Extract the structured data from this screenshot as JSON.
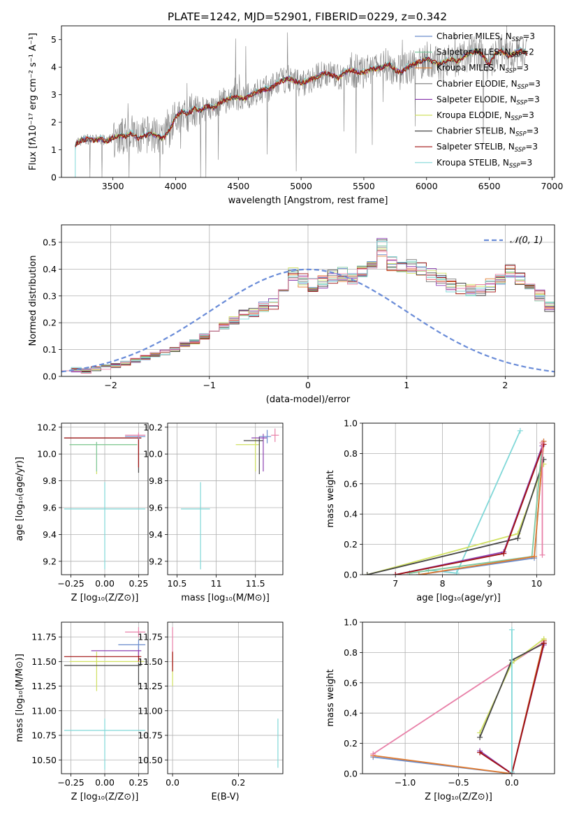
{
  "figure": {
    "title": "PLATE=1242, MJD=52901, FIBERID=0229, z=0.342"
  },
  "palette": {
    "Chabrier MILES": "#6a8ccc",
    "Salpeter MILES": "#7ec8a0",
    "Kroupa MILES": "#e07a2e",
    "Chabrier ELODIE": "#7a7a7a",
    "Salpeter ELODIE": "#8c3fb0",
    "Kroupa ELODIE": "#d0e060",
    "Chabrier STELIB": "#444444",
    "Salpeter STELIB": "#a01010",
    "Kroupa STELIB": "#80d8d8",
    "extra_pink": "#e880a8",
    "normal_curve": "#6a8cd8",
    "data_spectrum": "#808080"
  },
  "chart_data": [
    {
      "id": "spectrum",
      "type": "line",
      "title": "PLATE=1242, MJD=52901, FIBERID=0229, z=0.342",
      "xlabel": "wavelength [Angstrom, rest frame]",
      "ylabel": "Flux [fλ10⁻¹⁷ erg cm⁻² s⁻¹ A⁻¹]",
      "xlim": [
        3090,
        7020
      ],
      "ylim": [
        0,
        5.5
      ],
      "xticks": [
        3500,
        4000,
        4500,
        5000,
        5500,
        6000,
        6500,
        7000
      ],
      "yticks": [
        0,
        1,
        2,
        3,
        4,
        5
      ],
      "grid": false,
      "legend_position": "top-right",
      "data_range": [
        3200,
        6800
      ],
      "model_curve": {
        "x": [
          3200,
          3250,
          3300,
          3350,
          3400,
          3450,
          3500,
          3550,
          3600,
          3650,
          3700,
          3750,
          3800,
          3850,
          3900,
          3950,
          4000,
          4050,
          4100,
          4150,
          4200,
          4250,
          4300,
          4350,
          4400,
          4450,
          4500,
          4550,
          4600,
          4650,
          4700,
          4750,
          4800,
          4850,
          4900,
          4950,
          5000,
          5050,
          5100,
          5150,
          5200,
          5250,
          5300,
          5350,
          5400,
          5450,
          5500,
          5550,
          5600,
          5650,
          5700,
          5750,
          5800,
          5850,
          5900,
          5950,
          6000,
          6050,
          6100,
          6150,
          6200,
          6250,
          6300,
          6350,
          6400,
          6450,
          6500,
          6550,
          6600,
          6650,
          6700,
          6750,
          6800
        ],
        "y": [
          1.2,
          1.35,
          1.4,
          1.35,
          1.4,
          1.3,
          1.45,
          1.5,
          1.5,
          1.6,
          1.4,
          1.5,
          1.6,
          1.5,
          1.4,
          1.7,
          2.2,
          2.4,
          2.3,
          2.5,
          2.4,
          2.6,
          2.5,
          2.7,
          2.8,
          2.9,
          2.9,
          2.85,
          3.0,
          3.1,
          3.2,
          3.2,
          3.4,
          3.5,
          3.6,
          3.5,
          3.4,
          3.5,
          3.6,
          3.7,
          3.8,
          3.7,
          3.6,
          3.8,
          3.9,
          3.8,
          3.8,
          3.9,
          3.95,
          4.0,
          4.1,
          3.9,
          3.8,
          4.0,
          4.1,
          4.2,
          4.3,
          4.2,
          4.1,
          4.2,
          4.3,
          4.2,
          4.4,
          4.5,
          4.6,
          4.4,
          4.1,
          4.5,
          4.6,
          4.4,
          4.5,
          4.6,
          4.5
        ]
      },
      "series": [
        {
          "name": "Chabrier MILES, N_SSP=3",
          "legend_main": "Chabrier MILES, N",
          "legend_sub": "SSP",
          "legend_tail": "=3"
        },
        {
          "name": "Salpeter MILES, N_SSP=2",
          "legend_main": "Salpeter MILES, N",
          "legend_sub": "SSP",
          "legend_tail": "=2"
        },
        {
          "name": "Kroupa MILES, N_SSP=3",
          "legend_main": "Kroupa MILES, N",
          "legend_sub": "SSP",
          "legend_tail": "=3"
        },
        {
          "name": "Chabrier ELODIE, N_SSP=3",
          "legend_main": "Chabrier ELODIE, N",
          "legend_sub": "SSP",
          "legend_tail": "=3"
        },
        {
          "name": "Salpeter ELODIE, N_SSP=3",
          "legend_main": "Salpeter ELODIE, N",
          "legend_sub": "SSP",
          "legend_tail": "=3"
        },
        {
          "name": "Kroupa ELODIE, N_SSP=3",
          "legend_main": "Kroupa ELODIE, N",
          "legend_sub": "SSP",
          "legend_tail": "=3"
        },
        {
          "name": "Chabrier STELIB, N_SSP=3",
          "legend_main": "Chabrier STELIB, N",
          "legend_sub": "SSP",
          "legend_tail": "=3"
        },
        {
          "name": "Salpeter STELIB, N_SSP=3",
          "legend_main": "Salpeter STELIB, N",
          "legend_sub": "SSP",
          "legend_tail": "=3"
        },
        {
          "name": "Kroupa STELIB, N_SSP=3",
          "legend_main": "Kroupa STELIB, N",
          "legend_sub": "SSP",
          "legend_tail": "=3"
        }
      ]
    },
    {
      "id": "residuals",
      "type": "line",
      "xlabel": "(data-model)/error",
      "ylabel": "Normed distribution",
      "xlim": [
        -2.5,
        2.5
      ],
      "ylim": [
        0,
        0.565
      ],
      "xticks": [
        -2,
        -1,
        0,
        1,
        2
      ],
      "yticks": [
        0.0,
        0.1,
        0.2,
        0.3,
        0.4,
        0.5
      ],
      "grid": true,
      "legend_position": "top-right",
      "normal_label": "𝒩(0, 1)",
      "bin_edges_start": -2.5,
      "bin_width": 0.1,
      "base_hist": [
        0.03,
        0.025,
        0.02,
        0.03,
        0.035,
        0.04,
        0.05,
        0.06,
        0.07,
        0.08,
        0.09,
        0.1,
        0.12,
        0.13,
        0.15,
        0.17,
        0.19,
        0.21,
        0.23,
        0.24,
        0.26,
        0.27,
        0.33,
        0.38,
        0.36,
        0.34,
        0.35,
        0.37,
        0.38,
        0.37,
        0.4,
        0.42,
        0.48,
        0.42,
        0.4,
        0.41,
        0.4,
        0.38,
        0.36,
        0.34,
        0.33,
        0.32,
        0.32,
        0.34,
        0.36,
        0.39,
        0.37,
        0.33,
        0.3,
        0.26,
        0.22,
        0.19,
        0.17,
        0.14,
        0.12,
        0.1,
        0.085,
        0.075,
        0.065,
        0.055,
        0.05,
        0.045,
        0.04,
        0.035,
        0.035,
        0.03,
        0.025,
        0.02,
        0.02,
        0.02,
        0.02,
        0.02,
        0.02,
        0.02,
        0.02
      ]
    },
    {
      "id": "age_vs_Z",
      "type": "scatter",
      "xlabel": "Z [log₁₀(Z/Z⊙)]",
      "ylabel": "age  [log₁₀(age/yr)]",
      "xlim": [
        -0.32,
        0.32
      ],
      "ylim": [
        9.1,
        10.23
      ],
      "xticks": [
        -0.25,
        0.0,
        0.25
      ],
      "xticklabels": [
        "−0.25",
        "0.00",
        "0.25"
      ],
      "yticks": [
        9.2,
        9.4,
        9.6,
        9.8,
        10.0,
        10.2
      ],
      "grid": true,
      "points": [
        {
          "x": 0.0,
          "y": 9.59,
          "xerr": [
            0.3,
            0.3
          ],
          "yerr": [
            0.45,
            0.2
          ],
          "color": "#80d8d8"
        },
        {
          "x": -0.06,
          "y": 10.07,
          "xerr": [
            0.2,
            0.3
          ],
          "yerr": [
            0.22,
            0.02
          ],
          "color": "#d0e060"
        },
        {
          "x": -0.06,
          "y": 10.07,
          "xerr": [
            0.2,
            0.3
          ],
          "yerr": [
            0.2,
            0.02
          ],
          "color": "#7ec8a0"
        },
        {
          "x": 0.25,
          "y": 10.12,
          "xerr": [
            0.55,
            0.02
          ],
          "yerr": [
            0.26,
            0.02
          ],
          "color": "#444444"
        },
        {
          "x": 0.25,
          "y": 10.12,
          "xerr": [
            0.55,
            0.02
          ],
          "yerr": [
            0.22,
            0.02
          ],
          "color": "#a01010"
        },
        {
          "x": 0.25,
          "y": 10.13,
          "xerr": [
            0.1,
            0.05
          ],
          "yerr": [
            0.02,
            0.02
          ],
          "color": "#6a8ccc"
        },
        {
          "x": 0.25,
          "y": 10.14,
          "xerr": [
            0.1,
            0.05
          ],
          "yerr": [
            0.02,
            0.02
          ],
          "color": "#e880a8"
        }
      ]
    },
    {
      "id": "age_vs_mass",
      "type": "scatter",
      "xlabel": "mass [log₁₀(M/M⊙)]",
      "ylabel": "",
      "xlim": [
        10.38,
        11.85
      ],
      "ylim": [
        9.1,
        10.23
      ],
      "xticks": [
        10.5,
        11.0,
        11.5
      ],
      "yticks": [
        9.2,
        9.4,
        9.6,
        9.8,
        10.0,
        10.2
      ],
      "grid": true,
      "points": [
        {
          "x": 10.8,
          "y": 9.59,
          "xerr": [
            0.25,
            0.12
          ],
          "yerr": [
            0.45,
            0.2
          ],
          "color": "#80d8d8"
        },
        {
          "x": 11.5,
          "y": 10.07,
          "xerr": [
            0.25,
            0.05
          ],
          "yerr": [
            0.2,
            0.05
          ],
          "color": "#d0e060"
        },
        {
          "x": 11.55,
          "y": 10.1,
          "xerr": [
            0.2,
            0.05
          ],
          "yerr": [
            0.25,
            0.03
          ],
          "color": "#444444"
        },
        {
          "x": 11.6,
          "y": 10.12,
          "xerr": [
            0.15,
            0.05
          ],
          "yerr": [
            0.25,
            0.03
          ],
          "color": "#8c3fb0"
        },
        {
          "x": 11.65,
          "y": 10.13,
          "xerr": [
            0.1,
            0.05
          ],
          "yerr": [
            0.05,
            0.05
          ],
          "color": "#6a8ccc"
        },
        {
          "x": 11.75,
          "y": 10.14,
          "xerr": [
            0.05,
            0.05
          ],
          "yerr": [
            0.05,
            0.05
          ],
          "color": "#e880a8"
        }
      ]
    },
    {
      "id": "weight_vs_age",
      "type": "line",
      "xlabel": "age  [log₁₀(age/yr)]",
      "ylabel": "mass weight",
      "xlim": [
        6.3,
        10.38
      ],
      "ylim": [
        0,
        1.0
      ],
      "xticks": [
        7,
        8,
        9,
        10
      ],
      "yticks": [
        0.0,
        0.2,
        0.4,
        0.6,
        0.8,
        1.0
      ],
      "grid": true,
      "series": [
        {
          "color": "#80d8d8",
          "x": [
            7.7,
            8.3,
            9.65
          ],
          "y": [
            0.03,
            0.01,
            0.95
          ]
        },
        {
          "color": "#d0e060",
          "x": [
            6.4,
            9.6,
            10.15
          ],
          "y": [
            0.0,
            0.27,
            0.73
          ]
        },
        {
          "color": "#444444",
          "x": [
            6.4,
            9.6,
            10.15
          ],
          "y": [
            0.0,
            0.24,
            0.76
          ]
        },
        {
          "color": "#7ec8a0",
          "x": [
            7.3,
            9.9,
            10.12
          ],
          "y": [
            0.01,
            0.12,
            0.87
          ]
        },
        {
          "color": "#6a8ccc",
          "x": [
            7.5,
            9.95,
            10.15
          ],
          "y": [
            0.0,
            0.11,
            0.88
          ]
        },
        {
          "color": "#e07a2e",
          "x": [
            7.5,
            9.95,
            10.15
          ],
          "y": [
            0.0,
            0.12,
            0.88
          ]
        },
        {
          "color": "#8c3fb0",
          "x": [
            7.0,
            9.3,
            10.12
          ],
          "y": [
            0.0,
            0.15,
            0.85
          ]
        },
        {
          "color": "#a01010",
          "x": [
            7.0,
            9.3,
            10.15
          ],
          "y": [
            0.0,
            0.14,
            0.86
          ]
        },
        {
          "color": "#e880a8",
          "x": [
            10.12,
            10.12
          ],
          "y": [
            0.13,
            0.87
          ]
        }
      ]
    },
    {
      "id": "mass_vs_Z",
      "type": "scatter",
      "xlabel": "Z [log₁₀(Z/Z⊙)]",
      "ylabel": "mass [log₁₀(M/M⊙)]",
      "xlim": [
        -0.32,
        0.32
      ],
      "ylim": [
        10.36,
        11.9
      ],
      "xticks": [
        -0.25,
        0.0,
        0.25
      ],
      "xticklabels": [
        "−0.25",
        "0.00",
        "0.25"
      ],
      "yticks": [
        10.5,
        10.75,
        11.0,
        11.25,
        11.5,
        11.75
      ],
      "yticklabels": [
        "10.50",
        "10.75",
        "11.00",
        "11.25",
        "11.50",
        "11.75"
      ],
      "grid": true,
      "points": [
        {
          "x": 0.0,
          "y": 10.8,
          "xerr": [
            0.3,
            0.3
          ],
          "yerr": [
            0.4,
            0.12
          ],
          "color": "#80d8d8"
        },
        {
          "x": -0.06,
          "y": 11.5,
          "xerr": [
            0.2,
            0.35
          ],
          "yerr": [
            0.3,
            0.1
          ],
          "color": "#d0e060"
        },
        {
          "x": 0.25,
          "y": 11.46,
          "xerr": [
            0.55,
            0.02
          ],
          "yerr": [
            0.2,
            0.03
          ],
          "color": "#444444"
        },
        {
          "x": 0.25,
          "y": 11.55,
          "xerr": [
            0.55,
            0.02
          ],
          "yerr": [
            0.05,
            0.05
          ],
          "color": "#a01010"
        },
        {
          "x": 0.25,
          "y": 11.61,
          "xerr": [
            0.35,
            0.02
          ],
          "yerr": [
            0.05,
            0.05
          ],
          "color": "#8c3fb0"
        },
        {
          "x": 0.25,
          "y": 11.67,
          "xerr": [
            0.15,
            0.05
          ],
          "yerr": [
            0.05,
            0.05
          ],
          "color": "#6a8ccc"
        },
        {
          "x": 0.25,
          "y": 11.8,
          "xerr": [
            0.1,
            0.05
          ],
          "yerr": [
            0.05,
            0.05
          ],
          "color": "#e880a8"
        }
      ]
    },
    {
      "id": "mass_vs_ebv",
      "type": "scatter",
      "xlabel": "E(B-V)",
      "ylabel": "",
      "xlim": [
        -0.015,
        0.335
      ],
      "ylim": [
        10.36,
        11.9
      ],
      "xticks": [
        0.0,
        0.2
      ],
      "xticklabels": [
        "0.0",
        "0.2"
      ],
      "yticks": [
        10.5,
        10.75,
        11.0,
        11.25,
        11.5,
        11.75
      ],
      "yticklabels": [
        "10.50",
        "10.75",
        "11.00",
        "11.25",
        "11.50",
        "11.75"
      ],
      "grid": true,
      "points": [
        {
          "x": 0.32,
          "y": 10.7,
          "xerr": [
            0,
            0
          ],
          "yerr": [
            0.28,
            0.22
          ],
          "color": "#80d8d8"
        },
        {
          "x": 0.0,
          "y": 11.4,
          "xerr": [
            0,
            0
          ],
          "yerr": [
            0.15,
            0.2
          ],
          "color": "#d0e060"
        },
        {
          "x": 0.0,
          "y": 11.55,
          "xerr": [
            0,
            0
          ],
          "yerr": [
            0.1,
            0.3
          ],
          "color": "#e880a8"
        },
        {
          "x": 0.0,
          "y": 11.5,
          "xerr": [
            0,
            0
          ],
          "yerr": [
            0.1,
            0.1
          ],
          "color": "#a01010"
        }
      ]
    },
    {
      "id": "weight_vs_Z",
      "type": "line",
      "xlabel": "Z [log₁₀(Z/Z⊙)]",
      "ylabel": "mass weight",
      "xlim": [
        -1.4,
        0.4
      ],
      "ylim": [
        0,
        1.0
      ],
      "xticks": [
        -1.0,
        -0.5,
        0.0
      ],
      "xticklabels": [
        "−1.0",
        "−0.5",
        "0.0"
      ],
      "yticks": [
        0.0,
        0.2,
        0.4,
        0.6,
        0.8,
        1.0
      ],
      "grid": true,
      "series": [
        {
          "color": "#6a8ccc",
          "x": [
            -1.3,
            0.0,
            0.3
          ],
          "y": [
            0.11,
            0.0,
            0.88
          ]
        },
        {
          "color": "#e07a2e",
          "x": [
            -1.3,
            0.0,
            0.3
          ],
          "y": [
            0.12,
            0.0,
            0.88
          ]
        },
        {
          "color": "#e880a8",
          "x": [
            -1.3,
            0.3
          ],
          "y": [
            0.13,
            0.87
          ]
        },
        {
          "color": "#d0e060",
          "x": [
            -0.3,
            0.0,
            0.3
          ],
          "y": [
            0.27,
            0.73,
            0.89
          ]
        },
        {
          "color": "#444444",
          "x": [
            -0.3,
            0.0,
            0.3
          ],
          "y": [
            0.24,
            0.75,
            0.86
          ]
        },
        {
          "color": "#8c3fb0",
          "x": [
            -0.3,
            0.0,
            0.3
          ],
          "y": [
            0.15,
            0.0,
            0.85
          ]
        },
        {
          "color": "#a01010",
          "x": [
            -0.3,
            0.0,
            0.3
          ],
          "y": [
            0.14,
            0.0,
            0.86
          ]
        },
        {
          "color": "#80d8d8",
          "x": [
            0.0,
            0.0
          ],
          "y": [
            0.01,
            0.95
          ]
        }
      ]
    }
  ]
}
